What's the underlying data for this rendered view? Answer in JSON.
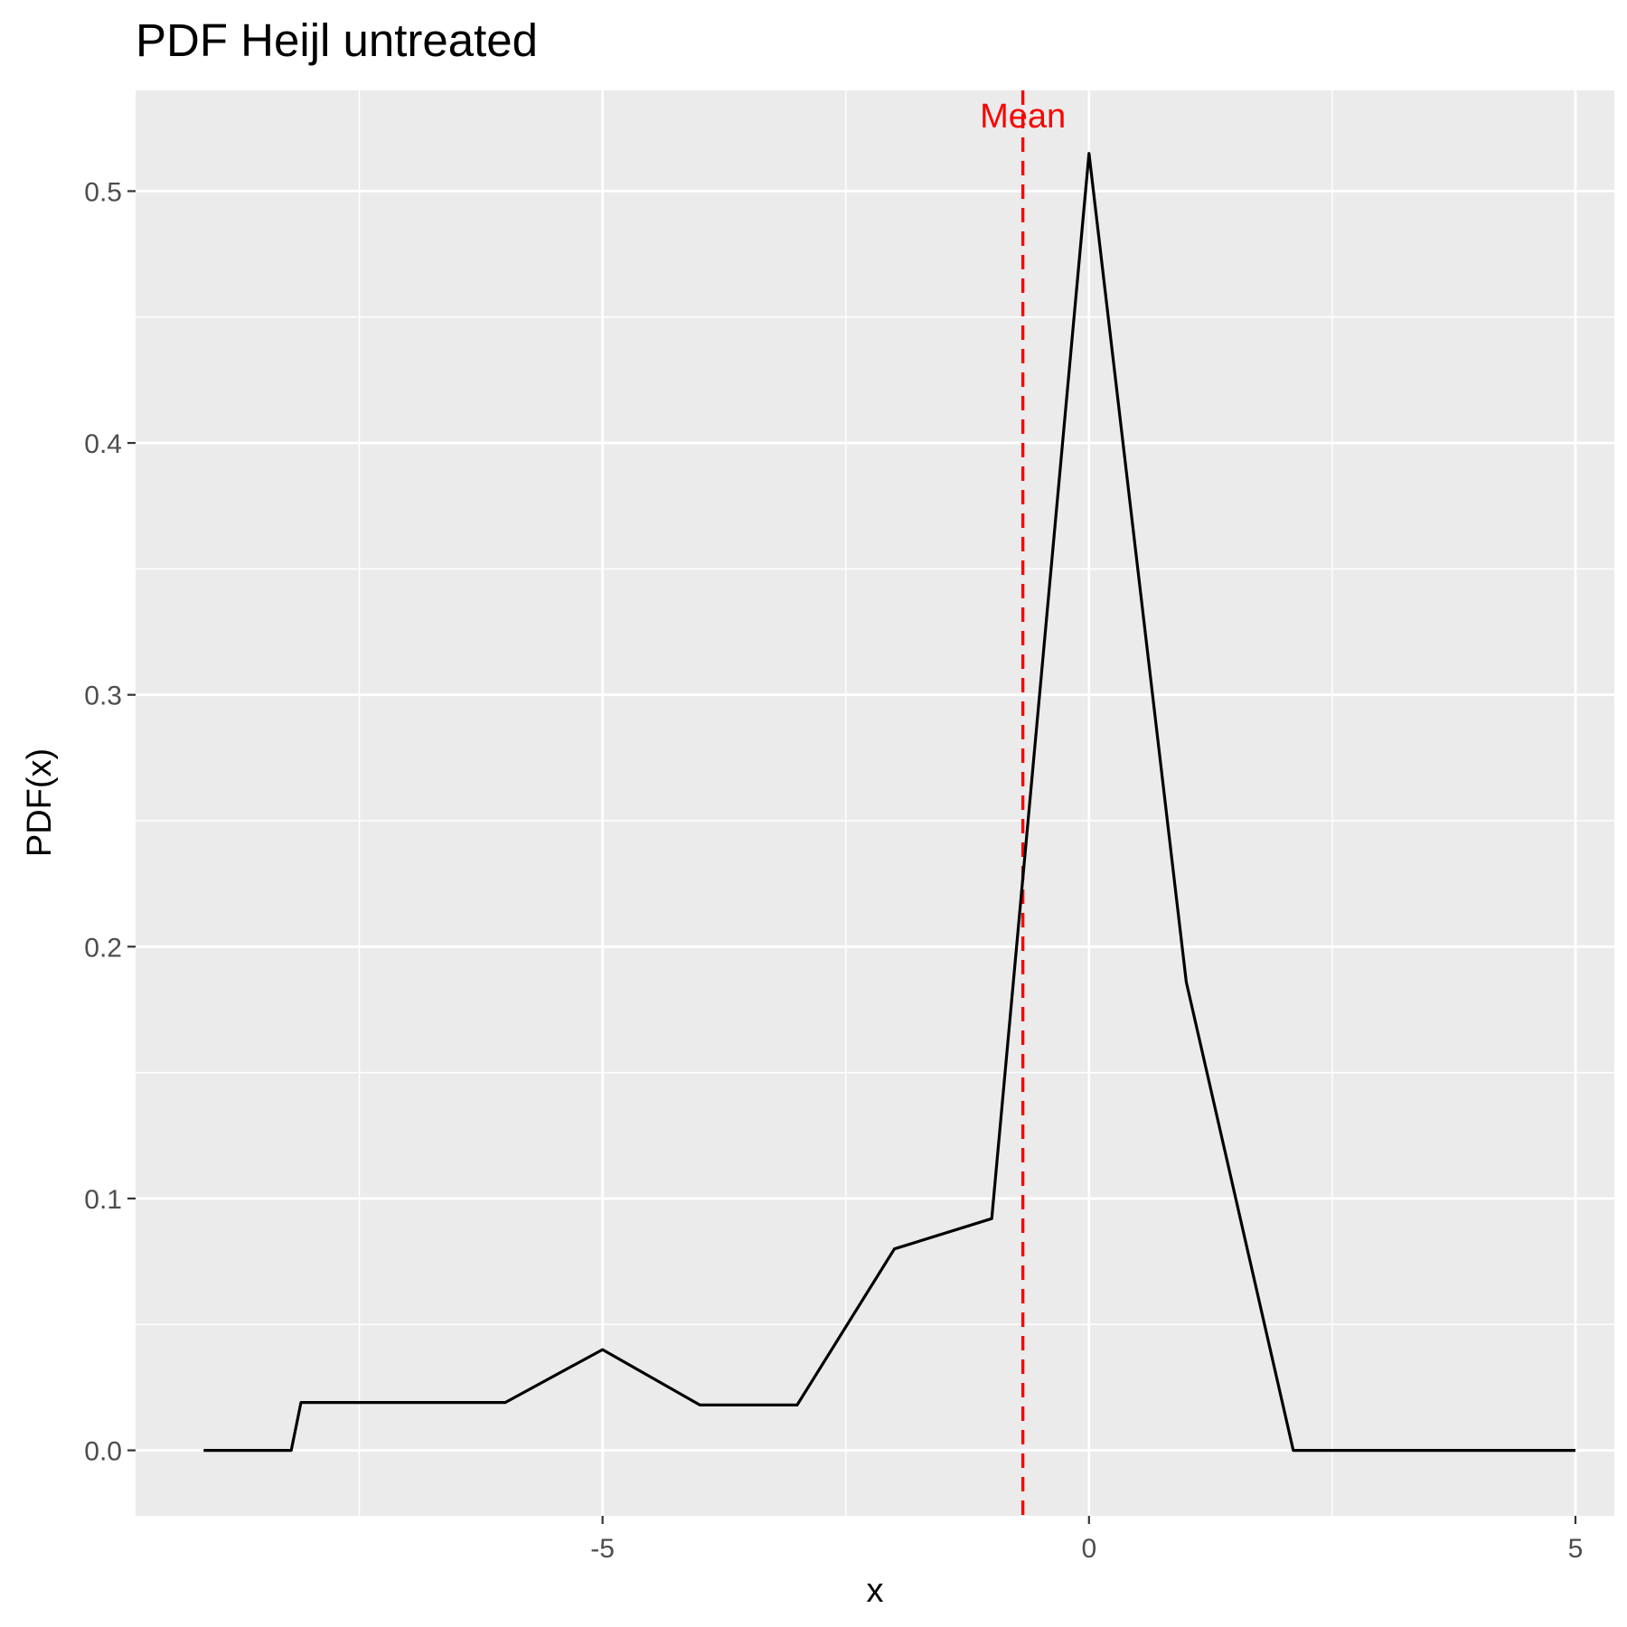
{
  "chart_data": {
    "type": "line",
    "title": "PDF Heijl untreated",
    "xlabel": "x",
    "ylabel": "PDF(x)",
    "xlim": [
      -9.8,
      5.4
    ],
    "ylim": [
      -0.026,
      0.54
    ],
    "xticks": [
      -5,
      0,
      5
    ],
    "xtick_labels": [
      "-5",
      "0",
      "5"
    ],
    "xminor": [
      -7.5,
      -2.5,
      2.5
    ],
    "yticks": [
      0.0,
      0.1,
      0.2,
      0.3,
      0.4,
      0.5
    ],
    "ytick_labels": [
      "0.0",
      "0.1",
      "0.2",
      "0.3",
      "0.4",
      "0.5"
    ],
    "yminor": [
      0.05,
      0.15,
      0.25,
      0.35,
      0.45
    ],
    "grid": true,
    "legend": "none",
    "series": [
      {
        "color": "#000000",
        "x": [
          -9.1,
          -8.2,
          -8.1,
          -7.0,
          -6.0,
          -5.0,
          -4.0,
          -3.0,
          -2.0,
          -1.0,
          0.0,
          1.0,
          2.1,
          3.0,
          4.0,
          5.0
        ],
        "y": [
          0.0,
          0.0,
          0.019,
          0.019,
          0.019,
          0.04,
          0.018,
          0.018,
          0.08,
          0.092,
          0.515,
          0.186,
          0.0,
          0.0,
          0.0,
          0.0
        ]
      }
    ],
    "annotations": [
      {
        "type": "vline",
        "x": -0.68,
        "color": "#ff0000",
        "style": "dashed",
        "label": "Mean",
        "label_y": 0.53
      }
    ]
  }
}
